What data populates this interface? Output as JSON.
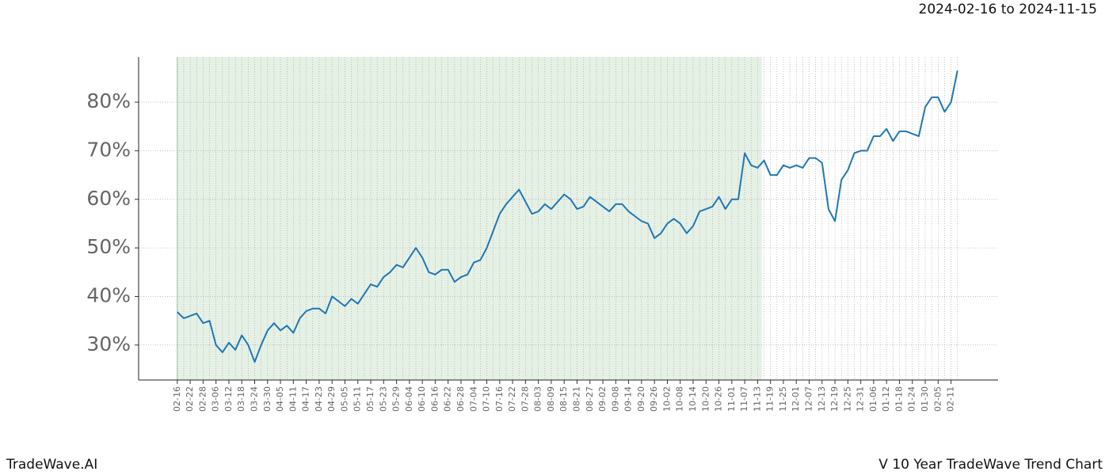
{
  "chart_data": {
    "type": "line",
    "date_range": "2024-02-16 to 2024-11-15",
    "brand": "TradeWave.AI",
    "footer_title": "V 10 Year TradeWave Trend Chart",
    "categories": [
      "02-16",
      null,
      "02-22",
      null,
      "02-28",
      null,
      "03-06",
      null,
      "03-12",
      null,
      "03-18",
      null,
      "03-24",
      null,
      "03-30",
      null,
      "04-05",
      null,
      "04-11",
      null,
      "04-17",
      null,
      "04-23",
      null,
      "04-29",
      null,
      "05-05",
      null,
      "05-11",
      null,
      "05-17",
      null,
      "05-23",
      null,
      "05-29",
      null,
      "06-04",
      null,
      "06-10",
      null,
      "06-16",
      null,
      "06-22",
      null,
      "06-28",
      null,
      "07-04",
      null,
      "07-10",
      null,
      "07-16",
      null,
      "07-22",
      null,
      "07-28",
      null,
      "08-03",
      null,
      "08-09",
      null,
      "08-15",
      null,
      "08-21",
      null,
      "08-27",
      null,
      "09-02",
      null,
      "09-08",
      null,
      "09-14",
      null,
      "09-20",
      null,
      "09-26",
      null,
      "10-02",
      null,
      "10-08",
      null,
      "10-14",
      null,
      "10-20",
      null,
      "10-26",
      null,
      "11-01",
      null,
      "11-07",
      null,
      "11-13",
      null,
      "11-19",
      null,
      "11-25",
      null,
      "12-01",
      null,
      "12-07",
      null,
      "12-13",
      null,
      "12-19",
      null,
      "12-25",
      null,
      "12-31",
      null,
      "01-06",
      null,
      "01-12",
      null,
      "01-18",
      null,
      "01-24",
      null,
      "01-30",
      null,
      "02-05",
      null,
      "02-11",
      null
    ],
    "series": [
      {
        "color": "#1f77b4",
        "values": [
          36.8,
          35.5,
          36,
          36.5,
          34.5,
          35,
          30,
          28.5,
          30.5,
          29,
          32,
          30,
          26.5,
          30,
          33,
          34.5,
          33,
          34,
          32.5,
          35.5,
          37,
          37.5,
          37.5,
          36.5,
          40,
          39,
          38,
          39.5,
          38.5,
          40.5,
          42.5,
          42,
          44,
          45,
          46.5,
          46,
          48,
          50,
          48,
          45,
          44.5,
          45.5,
          45.5,
          43,
          44,
          44.5,
          47,
          47.5,
          50,
          53.5,
          57,
          59,
          60.5,
          62,
          59.5,
          57,
          57.5,
          59,
          58,
          59.5,
          61,
          60,
          58,
          58.5,
          60.5,
          59.5,
          58.5,
          57.5,
          59,
          59,
          57.5,
          56.5,
          55.5,
          55,
          52,
          53,
          55,
          56,
          55,
          53,
          54.5,
          57.5,
          58,
          58.5,
          60.5,
          58,
          60,
          60,
          69.5,
          67,
          66.5,
          68,
          65,
          65,
          67,
          66.5,
          67,
          66.5,
          68.5,
          68.5,
          67.5,
          58,
          55.5,
          64,
          66,
          69.5,
          70,
          70,
          73,
          73,
          74.5,
          72,
          74,
          74,
          73.5,
          73,
          79,
          81,
          81,
          78,
          80,
          86.5
        ]
      }
    ],
    "highlight": {
      "from": 0,
      "to": 90.67,
      "color": "#e6f1e6",
      "edge_color": "#a9c9a9"
    },
    "xlim": [
      -6,
      127.3
    ],
    "ylim": [
      22.8,
      89.3
    ],
    "yticks": [
      {
        "value": 30,
        "label": "30%"
      },
      {
        "value": 40,
        "label": "40%"
      },
      {
        "value": 50,
        "label": "50%"
      },
      {
        "value": 60,
        "label": "60%"
      },
      {
        "value": 70,
        "label": "70%"
      },
      {
        "value": 80,
        "label": "80%"
      }
    ],
    "grid": true
  }
}
